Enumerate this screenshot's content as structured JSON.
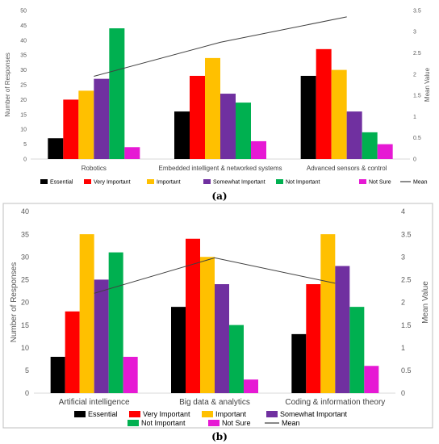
{
  "colors": {
    "Essential": "#000000",
    "Very Important": "#ff0000",
    "Important": "#ffc000",
    "Somewhat Important": "#7030a0",
    "Not Important": "#00b050",
    "Not Sure": "#e619d4",
    "Mean": "#404040"
  },
  "chart_data": [
    {
      "type": "bar",
      "label": "(a)",
      "categories": [
        "Robotics",
        "Embedded intelligent & networked systems",
        "Advanced sensors & control"
      ],
      "series": [
        {
          "name": "Essential",
          "values": [
            7,
            16,
            28
          ]
        },
        {
          "name": "Very Important",
          "values": [
            20,
            28,
            37
          ]
        },
        {
          "name": "Important",
          "values": [
            23,
            34,
            30
          ]
        },
        {
          "name": "Somewhat Important",
          "values": [
            27,
            22,
            16
          ]
        },
        {
          "name": "Not Important",
          "values": [
            44,
            19,
            9
          ]
        },
        {
          "name": "Not Sure",
          "values": [
            4,
            6,
            5
          ]
        }
      ],
      "line": {
        "name": "Mean",
        "values": [
          1.95,
          2.75,
          3.35
        ]
      },
      "ylabel": "Number of Responses",
      "y2label": "Mean Value",
      "ylim": [
        0,
        50
      ],
      "yticks": [
        0,
        5,
        10,
        15,
        20,
        25,
        30,
        35,
        40,
        45,
        50
      ],
      "y2lim": [
        0,
        3.5
      ],
      "y2ticks": [
        "0",
        "0.5",
        "1",
        "1.5",
        "2",
        "2.5",
        "3",
        "3.5"
      ],
      "legend": [
        "Essential",
        "Very Important",
        "Important",
        "Somewhat Important",
        "Not Important",
        "Not Sure",
        "Mean"
      ],
      "legend_position": "bottom",
      "grid": false
    },
    {
      "type": "bar",
      "label": "(b)",
      "categories": [
        "Artificial intelligence",
        "Big data & analytics",
        "Coding & information theory"
      ],
      "series": [
        {
          "name": "Essential",
          "values": [
            8,
            19,
            13
          ]
        },
        {
          "name": "Very Important",
          "values": [
            18,
            34,
            24
          ]
        },
        {
          "name": "Important",
          "values": [
            35,
            30,
            35
          ]
        },
        {
          "name": "Somewhat Important",
          "values": [
            25,
            24,
            28
          ]
        },
        {
          "name": "Not Important",
          "values": [
            31,
            15,
            19
          ]
        },
        {
          "name": "Not Sure",
          "values": [
            8,
            3,
            6
          ]
        }
      ],
      "line": {
        "name": "Mean",
        "values": [
          2.2,
          2.98,
          2.42
        ]
      },
      "ylabel": "Number of Responses",
      "y2label": "Mean Value",
      "ylim": [
        0,
        40
      ],
      "yticks": [
        0,
        5,
        10,
        15,
        20,
        25,
        30,
        35,
        40
      ],
      "y2lim": [
        0,
        4
      ],
      "y2ticks": [
        "0",
        "0.5",
        "1",
        "1.5",
        "2",
        "2.5",
        "3",
        "3.5",
        "4"
      ],
      "legend": [
        "Essential",
        "Very Important",
        "Important",
        "Somewhat Important",
        "Not Important",
        "Not Sure",
        "Mean"
      ],
      "legend_position": "bottom",
      "grid": false
    }
  ]
}
